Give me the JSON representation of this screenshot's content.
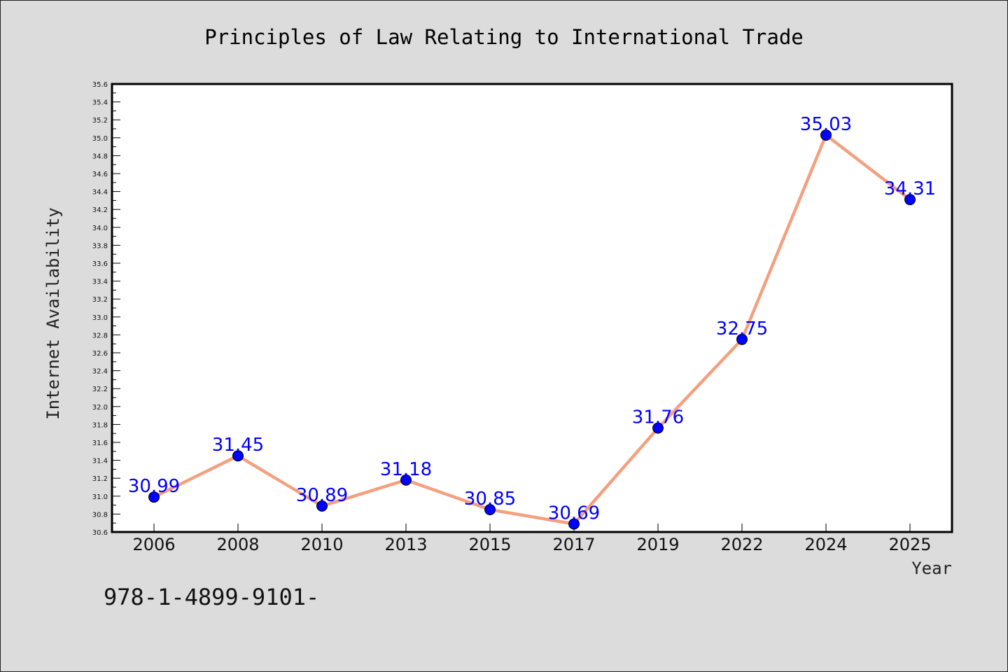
{
  "chart_data": {
    "type": "line",
    "title": "Principles of Law Relating to International Trade",
    "xlabel": "Year",
    "ylabel": "Internet Availability",
    "categories": [
      "2006",
      "2008",
      "2010",
      "2013",
      "2015",
      "2017",
      "2019",
      "2022",
      "2024",
      "2025"
    ],
    "values": [
      30.99,
      31.45,
      30.89,
      31.18,
      30.85,
      30.69,
      31.76,
      32.75,
      35.03,
      34.31
    ],
    "data_labels": [
      "30.99",
      "31.45",
      "30.89",
      "31.18",
      "30.85",
      "30.69",
      "31.76",
      "32.75",
      "35.03",
      "34.31"
    ],
    "ylim": [
      30.6,
      35.6
    ],
    "yticks": [
      "30.6",
      "30.8",
      "31.0",
      "31.2",
      "31.4",
      "31.6",
      "31.8",
      "32.0",
      "32.2",
      "32.4",
      "32.6",
      "32.8",
      "33.0",
      "33.2",
      "33.4",
      "33.6",
      "33.8",
      "34.0",
      "34.2",
      "34.4",
      "34.6",
      "34.8",
      "35.0",
      "35.2",
      "35.4",
      "35.6"
    ],
    "grid": false,
    "line_color": "#f4a07f",
    "marker_color": "#0000ff",
    "label_color": "#0000ff"
  },
  "footer_text": "978-1-4899-9101-"
}
